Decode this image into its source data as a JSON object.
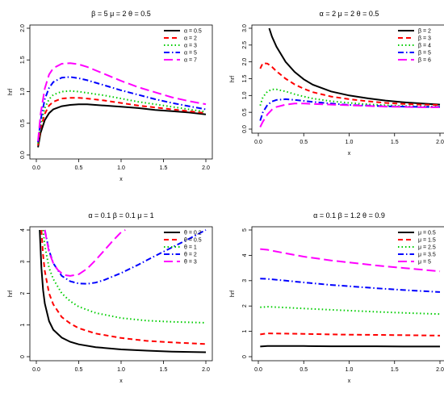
{
  "chart_data": [
    {
      "type": "line",
      "title": "β = 5  μ = 2  θ = 0.5",
      "xlabel": "x",
      "ylabel": "hrf",
      "xlim": [
        0.0,
        2.0
      ],
      "ylim": [
        0.0,
        2.0
      ],
      "xticks": [
        "0.0",
        "0.5",
        "1.0",
        "1.5",
        "2.0"
      ],
      "yticks": [
        "0.0",
        "0.5",
        "1.0",
        "1.5",
        "2.0"
      ],
      "legend_position": "top-right",
      "grid": false,
      "series": [
        {
          "name": "α = 0.5",
          "color": "#000000",
          "dash": "solid",
          "x": [
            0.02,
            0.05,
            0.1,
            0.15,
            0.2,
            0.3,
            0.4,
            0.5,
            0.6,
            0.8,
            1.0,
            1.2,
            1.4,
            1.6,
            1.8,
            2.0
          ],
          "y": [
            0.12,
            0.35,
            0.55,
            0.66,
            0.72,
            0.77,
            0.79,
            0.8,
            0.8,
            0.78,
            0.76,
            0.74,
            0.71,
            0.69,
            0.67,
            0.64
          ]
        },
        {
          "name": "α = 2",
          "color": "#ff0000",
          "dash": "dashed",
          "x": [
            0.02,
            0.05,
            0.1,
            0.15,
            0.2,
            0.3,
            0.4,
            0.5,
            0.6,
            0.8,
            1.0,
            1.2,
            1.4,
            1.6,
            1.8,
            2.0
          ],
          "y": [
            0.15,
            0.42,
            0.65,
            0.78,
            0.84,
            0.89,
            0.9,
            0.9,
            0.89,
            0.86,
            0.82,
            0.78,
            0.75,
            0.72,
            0.69,
            0.66
          ]
        },
        {
          "name": "α = 3",
          "color": "#00cd00",
          "dash": "dotted",
          "x": [
            0.02,
            0.05,
            0.1,
            0.15,
            0.2,
            0.3,
            0.4,
            0.5,
            0.6,
            0.8,
            1.0,
            1.2,
            1.4,
            1.6,
            1.8,
            2.0
          ],
          "y": [
            0.18,
            0.48,
            0.74,
            0.88,
            0.95,
            1.0,
            1.01,
            1.0,
            0.98,
            0.94,
            0.89,
            0.84,
            0.8,
            0.76,
            0.72,
            0.68
          ]
        },
        {
          "name": "α = 5",
          "color": "#0000ff",
          "dash": "dashdot",
          "x": [
            0.02,
            0.05,
            0.1,
            0.15,
            0.2,
            0.3,
            0.4,
            0.5,
            0.6,
            0.8,
            1.0,
            1.2,
            1.4,
            1.6,
            1.8,
            2.0
          ],
          "y": [
            0.2,
            0.55,
            0.88,
            1.06,
            1.15,
            1.22,
            1.23,
            1.21,
            1.18,
            1.1,
            1.02,
            0.95,
            0.88,
            0.82,
            0.77,
            0.72
          ]
        },
        {
          "name": "α = 7",
          "color": "#ff00ff",
          "dash": "longdash",
          "x": [
            0.02,
            0.05,
            0.1,
            0.15,
            0.2,
            0.3,
            0.4,
            0.5,
            0.6,
            0.8,
            1.0,
            1.2,
            1.4,
            1.6,
            1.8,
            2.0
          ],
          "y": [
            0.22,
            0.65,
            1.05,
            1.27,
            1.37,
            1.44,
            1.45,
            1.43,
            1.39,
            1.28,
            1.17,
            1.07,
            0.99,
            0.91,
            0.85,
            0.8
          ]
        }
      ]
    },
    {
      "type": "line",
      "title": "α = 2  μ = 2  θ = 0.5",
      "xlabel": "x",
      "ylabel": "hrf",
      "xlim": [
        0.0,
        2.0
      ],
      "ylim": [
        0.0,
        3.0
      ],
      "xticks": [
        "0.0",
        "0.5",
        "1.0",
        "1.5",
        "2.0"
      ],
      "yticks": [
        "0.0",
        "0.5",
        "1.0",
        "1.5",
        "2.0",
        "2.5",
        "3.0"
      ],
      "legend_position": "top-right",
      "grid": false,
      "series": [
        {
          "name": "β = 2",
          "color": "#000000",
          "dash": "solid",
          "x": [
            0.12,
            0.15,
            0.2,
            0.3,
            0.4,
            0.5,
            0.6,
            0.8,
            1.0,
            1.2,
            1.4,
            1.6,
            1.8,
            2.0
          ],
          "y": [
            3.0,
            2.75,
            2.45,
            2.0,
            1.7,
            1.48,
            1.32,
            1.12,
            1.0,
            0.92,
            0.85,
            0.8,
            0.76,
            0.73
          ]
        },
        {
          "name": "β = 3",
          "color": "#ff0000",
          "dash": "dashed",
          "x": [
            0.02,
            0.05,
            0.1,
            0.15,
            0.2,
            0.3,
            0.4,
            0.5,
            0.6,
            0.8,
            1.0,
            1.2,
            1.4,
            1.6,
            1.8,
            2.0
          ],
          "y": [
            1.8,
            1.96,
            1.95,
            1.85,
            1.72,
            1.5,
            1.33,
            1.2,
            1.1,
            0.97,
            0.89,
            0.83,
            0.78,
            0.75,
            0.73,
            0.72
          ]
        },
        {
          "name": "β = 4",
          "color": "#00cd00",
          "dash": "dotted",
          "x": [
            0.02,
            0.05,
            0.1,
            0.15,
            0.2,
            0.3,
            0.4,
            0.5,
            0.6,
            0.8,
            1.0,
            1.2,
            1.4,
            1.6,
            1.8,
            2.0
          ],
          "y": [
            0.7,
            0.95,
            1.12,
            1.18,
            1.18,
            1.12,
            1.04,
            0.97,
            0.91,
            0.83,
            0.78,
            0.74,
            0.71,
            0.69,
            0.68,
            0.67
          ]
        },
        {
          "name": "β = 5",
          "color": "#0000ff",
          "dash": "dashdot",
          "x": [
            0.02,
            0.05,
            0.1,
            0.15,
            0.2,
            0.3,
            0.4,
            0.5,
            0.6,
            0.8,
            1.0,
            1.2,
            1.4,
            1.6,
            1.8,
            2.0
          ],
          "y": [
            0.25,
            0.5,
            0.72,
            0.82,
            0.87,
            0.89,
            0.87,
            0.84,
            0.81,
            0.76,
            0.72,
            0.7,
            0.68,
            0.67,
            0.66,
            0.66
          ]
        },
        {
          "name": "β = 6",
          "color": "#ff00ff",
          "dash": "longdash",
          "x": [
            0.02,
            0.05,
            0.1,
            0.15,
            0.2,
            0.3,
            0.4,
            0.5,
            0.6,
            0.8,
            1.0,
            1.2,
            1.4,
            1.6,
            1.8,
            2.0
          ],
          "y": [
            0.06,
            0.22,
            0.44,
            0.58,
            0.66,
            0.73,
            0.76,
            0.76,
            0.75,
            0.73,
            0.71,
            0.69,
            0.67,
            0.66,
            0.65,
            0.65
          ]
        }
      ]
    },
    {
      "type": "line",
      "title": "α = 0.1  β = 0.1  μ = 1",
      "xlabel": "x",
      "ylabel": "hrf",
      "xlim": [
        0.0,
        2.0
      ],
      "ylim": [
        0.0,
        4.0
      ],
      "xticks": [
        "0.0",
        "0.5",
        "1.0",
        "1.5",
        "2.0"
      ],
      "yticks": [
        "0",
        "1",
        "2",
        "3",
        "4"
      ],
      "legend_position": "top-right",
      "grid": false,
      "series": [
        {
          "name": "θ = 0.2",
          "color": "#000000",
          "dash": "solid",
          "x": [
            0.04,
            0.06,
            0.08,
            0.1,
            0.15,
            0.2,
            0.3,
            0.4,
            0.5,
            0.7,
            1.0,
            1.3,
            1.6,
            2.0
          ],
          "y": [
            4.0,
            2.8,
            2.1,
            1.68,
            1.12,
            0.85,
            0.6,
            0.47,
            0.39,
            0.3,
            0.23,
            0.19,
            0.16,
            0.14
          ]
        },
        {
          "name": "θ = 0.5",
          "color": "#ff0000",
          "dash": "dashed",
          "x": [
            0.06,
            0.08,
            0.1,
            0.15,
            0.2,
            0.3,
            0.4,
            0.5,
            0.7,
            1.0,
            1.3,
            1.6,
            2.0
          ],
          "y": [
            4.0,
            3.2,
            2.7,
            2.0,
            1.65,
            1.25,
            1.05,
            0.9,
            0.73,
            0.59,
            0.5,
            0.45,
            0.4
          ]
        },
        {
          "name": "θ = 1",
          "color": "#00cd00",
          "dash": "dotted",
          "x": [
            0.08,
            0.1,
            0.15,
            0.2,
            0.3,
            0.4,
            0.5,
            0.7,
            1.0,
            1.3,
            1.6,
            2.0
          ],
          "y": [
            4.0,
            3.5,
            2.8,
            2.45,
            2.0,
            1.75,
            1.58,
            1.38,
            1.22,
            1.14,
            1.1,
            1.07
          ]
        },
        {
          "name": "θ = 2",
          "color": "#0000ff",
          "dash": "dashdot",
          "x": [
            0.1,
            0.15,
            0.2,
            0.3,
            0.4,
            0.5,
            0.6,
            0.7,
            0.8,
            1.0,
            1.2,
            1.4,
            1.6,
            1.8,
            2.0
          ],
          "y": [
            4.0,
            3.35,
            2.95,
            2.55,
            2.38,
            2.31,
            2.3,
            2.34,
            2.42,
            2.64,
            2.9,
            3.18,
            3.45,
            3.72,
            4.0
          ]
        },
        {
          "name": "θ = 3",
          "color": "#ff00ff",
          "dash": "longdash",
          "x": [
            0.1,
            0.15,
            0.2,
            0.25,
            0.3,
            0.35,
            0.4,
            0.5,
            0.6,
            0.7,
            0.8,
            0.9,
            1.0,
            1.05
          ],
          "y": [
            4.0,
            3.3,
            2.95,
            2.75,
            2.63,
            2.57,
            2.55,
            2.6,
            2.78,
            3.05,
            3.35,
            3.65,
            3.93,
            4.0
          ]
        }
      ]
    },
    {
      "type": "line",
      "title": "α = 0.1  β = 1.2  θ = 0.9",
      "xlabel": "x",
      "ylabel": "hrf",
      "xlim": [
        0.0,
        2.0
      ],
      "ylim": [
        0.0,
        5.0
      ],
      "xticks": [
        "0.0",
        "0.5",
        "1.0",
        "1.5",
        "2.0"
      ],
      "yticks": [
        "0",
        "1",
        "2",
        "3",
        "4",
        "5"
      ],
      "legend_position": "top-right",
      "grid": false,
      "series": [
        {
          "name": "μ = 0.5",
          "color": "#000000",
          "dash": "solid",
          "x": [
            0.02,
            0.1,
            0.3,
            0.5,
            0.8,
            1.0,
            1.3,
            1.6,
            2.0
          ],
          "y": [
            0.4,
            0.42,
            0.42,
            0.42,
            0.41,
            0.41,
            0.41,
            0.4,
            0.4
          ]
        },
        {
          "name": "μ = 1.5",
          "color": "#ff0000",
          "dash": "dashed",
          "x": [
            0.02,
            0.1,
            0.3,
            0.5,
            0.8,
            1.0,
            1.3,
            1.6,
            2.0
          ],
          "y": [
            0.88,
            0.92,
            0.91,
            0.9,
            0.88,
            0.87,
            0.86,
            0.85,
            0.83
          ]
        },
        {
          "name": "μ = 2.5",
          "color": "#00cd00",
          "dash": "dotted",
          "x": [
            0.02,
            0.1,
            0.3,
            0.5,
            0.8,
            1.0,
            1.3,
            1.6,
            2.0
          ],
          "y": [
            1.95,
            1.97,
            1.94,
            1.9,
            1.85,
            1.82,
            1.77,
            1.73,
            1.68
          ]
        },
        {
          "name": "μ = 3.5",
          "color": "#0000ff",
          "dash": "dashdot",
          "x": [
            0.02,
            0.1,
            0.3,
            0.5,
            0.8,
            1.0,
            1.3,
            1.6,
            2.0
          ],
          "y": [
            3.08,
            3.07,
            3.0,
            2.93,
            2.83,
            2.78,
            2.7,
            2.63,
            2.55
          ]
        },
        {
          "name": "μ = 5",
          "color": "#ff00ff",
          "dash": "longdash",
          "x": [
            0.02,
            0.1,
            0.3,
            0.5,
            0.8,
            1.0,
            1.3,
            1.6,
            2.0
          ],
          "y": [
            4.25,
            4.22,
            4.08,
            3.95,
            3.8,
            3.72,
            3.6,
            3.5,
            3.37
          ]
        }
      ]
    }
  ]
}
